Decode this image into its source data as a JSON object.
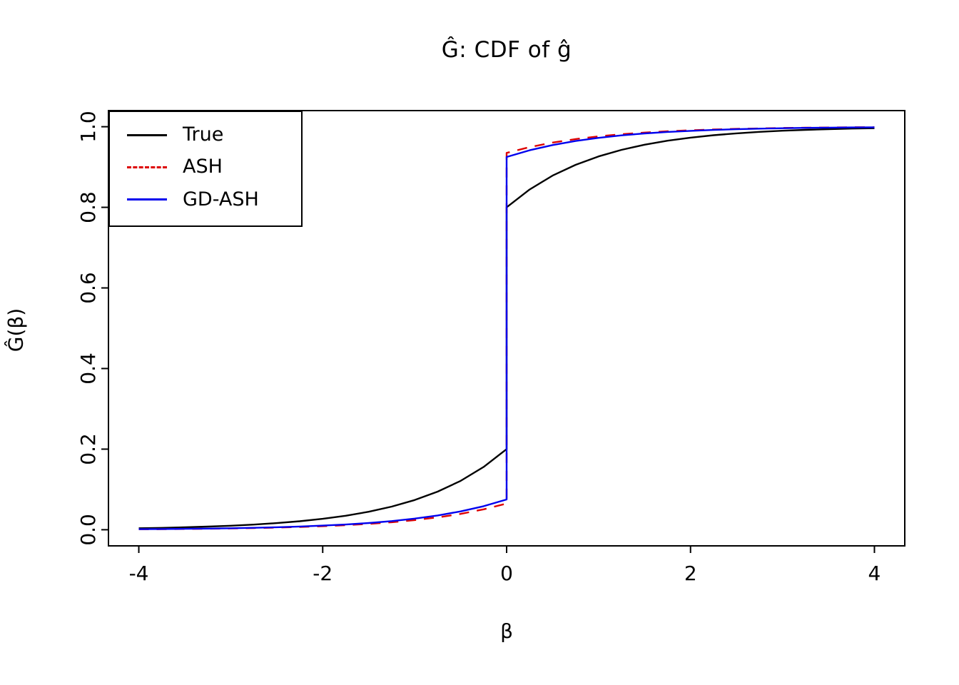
{
  "title": "Ĝ: CDF of ĝ",
  "xlabel": "β",
  "ylabel": "Ĝ(β)",
  "axes": {
    "xlim": [
      -4.33,
      4.33
    ],
    "ylim": [
      -0.04,
      1.04
    ],
    "x_ticks": [
      -4,
      -2,
      0,
      2,
      4
    ],
    "x_tick_labels": [
      "-4",
      "-2",
      "0",
      "2",
      "4"
    ],
    "y_ticks": [
      0.0,
      0.2,
      0.4,
      0.6,
      0.8,
      1.0
    ],
    "y_tick_labels": [
      "0.0",
      "0.2",
      "0.4",
      "0.6",
      "0.8",
      "1.0"
    ]
  },
  "legend": {
    "position": "top-left",
    "entries": [
      {
        "label": "True",
        "color": "#000000",
        "dash": "solid"
      },
      {
        "label": "ASH",
        "color": "#dd0000",
        "dash": "dashed"
      },
      {
        "label": "GD-ASH",
        "color": "#0000ee",
        "dash": "solid"
      }
    ]
  },
  "chart_data": {
    "type": "line",
    "title": "Ĝ: CDF of ĝ",
    "xlabel": "β",
    "ylabel": "Ĝ(β)",
    "xlim": [
      -4,
      4
    ],
    "ylim": [
      0,
      1
    ],
    "grid": false,
    "legend_position": "top-left",
    "description": "CDF curves with a point mass at beta=0: True jumps from 0.2 to 0.8; ASH and GD-ASH jump from about 0.07 to 0.93",
    "series": [
      {
        "name": "True",
        "color": "#000000",
        "style": "solid",
        "points": [
          [
            -4,
            0.0037
          ],
          [
            -3.75,
            0.0047
          ],
          [
            -3.5,
            0.006
          ],
          [
            -3.25,
            0.0078
          ],
          [
            -3,
            0.01
          ],
          [
            -2.75,
            0.0128
          ],
          [
            -2.5,
            0.0164
          ],
          [
            -2.25,
            0.0211
          ],
          [
            -2,
            0.0271
          ],
          [
            -1.75,
            0.0348
          ],
          [
            -1.5,
            0.0446
          ],
          [
            -1.25,
            0.0573
          ],
          [
            -1,
            0.0736
          ],
          [
            -0.75,
            0.0945
          ],
          [
            -0.5,
            0.1213
          ],
          [
            -0.25,
            0.1558
          ],
          [
            0,
            0.2
          ],
          [
            0,
            0.8
          ],
          [
            0.25,
            0.8442
          ],
          [
            0.5,
            0.8787
          ],
          [
            0.75,
            0.9055
          ],
          [
            1,
            0.9264
          ],
          [
            1.25,
            0.9427
          ],
          [
            1.5,
            0.9554
          ],
          [
            1.75,
            0.9652
          ],
          [
            2,
            0.9729
          ],
          [
            2.25,
            0.9789
          ],
          [
            2.5,
            0.9836
          ],
          [
            2.75,
            0.9872
          ],
          [
            3,
            0.99
          ],
          [
            3.25,
            0.9922
          ],
          [
            3.5,
            0.994
          ],
          [
            3.75,
            0.9953
          ],
          [
            4,
            0.9963
          ]
        ]
      },
      {
        "name": "ASH",
        "color": "#dd0000",
        "style": "dashed",
        "points": [
          [
            -4,
            0.0012
          ],
          [
            -3.75,
            0.0015
          ],
          [
            -3.5,
            0.002
          ],
          [
            -3.25,
            0.0025
          ],
          [
            -3,
            0.0032
          ],
          [
            -2.75,
            0.0042
          ],
          [
            -2.5,
            0.0053
          ],
          [
            -2.25,
            0.0069
          ],
          [
            -2,
            0.0088
          ],
          [
            -1.75,
            0.0113
          ],
          [
            -1.5,
            0.0145
          ],
          [
            -1.25,
            0.0186
          ],
          [
            -1,
            0.0239
          ],
          [
            -0.75,
            0.0307
          ],
          [
            -0.5,
            0.0394
          ],
          [
            -0.25,
            0.0506
          ],
          [
            0,
            0.065
          ],
          [
            0,
            0.935
          ],
          [
            0.25,
            0.9494
          ],
          [
            0.5,
            0.9606
          ],
          [
            0.75,
            0.9693
          ],
          [
            1,
            0.9761
          ],
          [
            1.25,
            0.9814
          ],
          [
            1.5,
            0.9855
          ],
          [
            1.75,
            0.9887
          ],
          [
            2,
            0.9912
          ],
          [
            2.25,
            0.9931
          ],
          [
            2.5,
            0.9947
          ],
          [
            2.75,
            0.9958
          ],
          [
            3,
            0.9968
          ],
          [
            3.25,
            0.9975
          ],
          [
            3.5,
            0.998
          ],
          [
            3.75,
            0.9985
          ],
          [
            4,
            0.9988
          ]
        ]
      },
      {
        "name": "GD-ASH",
        "color": "#0000ee",
        "style": "solid",
        "points": [
          [
            -4,
            0.0014
          ],
          [
            -3.75,
            0.0018
          ],
          [
            -3.5,
            0.0023
          ],
          [
            -3.25,
            0.0029
          ],
          [
            -3,
            0.0037
          ],
          [
            -2.75,
            0.0048
          ],
          [
            -2.5,
            0.0062
          ],
          [
            -2.25,
            0.0079
          ],
          [
            -2,
            0.0102
          ],
          [
            -1.75,
            0.013
          ],
          [
            -1.5,
            0.0167
          ],
          [
            -1.25,
            0.0215
          ],
          [
            -1,
            0.0276
          ],
          [
            -0.75,
            0.0354
          ],
          [
            -0.5,
            0.0455
          ],
          [
            -0.25,
            0.0584
          ],
          [
            0,
            0.075
          ],
          [
            0,
            0.925
          ],
          [
            0.25,
            0.9416
          ],
          [
            0.5,
            0.9545
          ],
          [
            0.75,
            0.9646
          ],
          [
            1,
            0.9724
          ],
          [
            1.25,
            0.9785
          ],
          [
            1.5,
            0.9833
          ],
          [
            1.75,
            0.987
          ],
          [
            2,
            0.9898
          ],
          [
            2.25,
            0.9921
          ],
          [
            2.5,
            0.9938
          ],
          [
            2.75,
            0.9952
          ],
          [
            3,
            0.9963
          ],
          [
            3.25,
            0.9971
          ],
          [
            3.5,
            0.9977
          ],
          [
            3.75,
            0.9982
          ],
          [
            4,
            0.9986
          ]
        ]
      }
    ]
  }
}
